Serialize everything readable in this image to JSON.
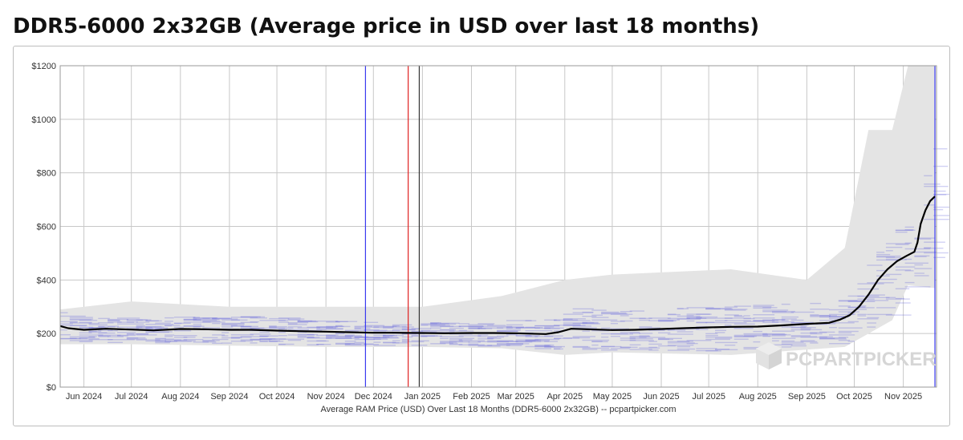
{
  "page": {
    "title": "DDR5-6000 2x32GB (Average price in USD over last 18 months)"
  },
  "colors": {
    "average_line": "#000000",
    "price_band": "#e4e4e4",
    "listing_bars": "#7070dd",
    "marker_blue": "#3a3af0",
    "marker_red": "#e02020",
    "marker_black": "#333333",
    "grid": "#c8c8c8"
  },
  "chart_data": {
    "type": "line",
    "title": "DDR5-6000 2x32GB (Average price in USD over last 18 months)",
    "xlabel": "Average RAM Price (USD) Over Last 18 Months (DDR5-6000 2x32GB) -- pcpartpicker.com",
    "ylabel": "",
    "ylim": [
      0,
      1200
    ],
    "xlim": [
      "2024-05-17",
      "2025-11-22"
    ],
    "grid": true,
    "y_ticks": [
      {
        "value": 0,
        "label": "$0"
      },
      {
        "value": 200,
        "label": "$200"
      },
      {
        "value": 400,
        "label": "$400"
      },
      {
        "value": 600,
        "label": "$600"
      },
      {
        "value": 800,
        "label": "$800"
      },
      {
        "value": 1000,
        "label": "$1000"
      },
      {
        "value": 1200,
        "label": "$1200"
      }
    ],
    "x_ticks": [
      {
        "date": "2024-06-01",
        "label": "Jun 2024"
      },
      {
        "date": "2024-07-01",
        "label": "Jul 2024"
      },
      {
        "date": "2024-08-01",
        "label": "Aug 2024"
      },
      {
        "date": "2024-09-01",
        "label": "Sep 2024"
      },
      {
        "date": "2024-10-01",
        "label": "Oct 2024"
      },
      {
        "date": "2024-11-01",
        "label": "Nov 2024"
      },
      {
        "date": "2024-12-01",
        "label": "Dec 2024"
      },
      {
        "date": "2025-01-01",
        "label": "Jan 2025"
      },
      {
        "date": "2025-02-01",
        "label": "Feb 2025"
      },
      {
        "date": "2025-03-01",
        "label": "Mar 2025"
      },
      {
        "date": "2025-04-01",
        "label": "Apr 2025"
      },
      {
        "date": "2025-05-01",
        "label": "May 2025"
      },
      {
        "date": "2025-06-01",
        "label": "Jun 2025"
      },
      {
        "date": "2025-07-01",
        "label": "Jul 2025"
      },
      {
        "date": "2025-08-01",
        "label": "Aug 2025"
      },
      {
        "date": "2025-09-01",
        "label": "Sep 2025"
      },
      {
        "date": "2025-10-01",
        "label": "Oct 2025"
      },
      {
        "date": "2025-11-01",
        "label": "Nov 2025"
      }
    ],
    "vertical_markers": [
      {
        "date": "2024-11-26",
        "color": "#3a3af0"
      },
      {
        "date": "2024-12-23",
        "color": "#e02020"
      },
      {
        "date": "2024-12-30",
        "color": "#333333"
      },
      {
        "date": "2025-11-21",
        "color": "#3a3af0"
      }
    ],
    "series": [
      {
        "style": "line",
        "points": [
          {
            "x": "2024-05-17",
            "y": 228
          },
          {
            "x": "2024-05-22",
            "y": 220
          },
          {
            "x": "2024-06-01",
            "y": 214
          },
          {
            "x": "2024-06-15",
            "y": 218
          },
          {
            "x": "2024-07-01",
            "y": 215
          },
          {
            "x": "2024-07-15",
            "y": 212
          },
          {
            "x": "2024-08-01",
            "y": 217
          },
          {
            "x": "2024-08-15",
            "y": 216
          },
          {
            "x": "2024-09-01",
            "y": 214
          },
          {
            "x": "2024-09-15",
            "y": 214
          },
          {
            "x": "2024-10-01",
            "y": 211
          },
          {
            "x": "2024-10-15",
            "y": 209
          },
          {
            "x": "2024-11-01",
            "y": 207
          },
          {
            "x": "2024-11-15",
            "y": 205
          },
          {
            "x": "2024-12-01",
            "y": 203
          },
          {
            "x": "2024-12-15",
            "y": 203
          },
          {
            "x": "2025-01-01",
            "y": 202
          },
          {
            "x": "2025-01-15",
            "y": 201
          },
          {
            "x": "2025-02-01",
            "y": 202
          },
          {
            "x": "2025-02-15",
            "y": 202
          },
          {
            "x": "2025-03-01",
            "y": 201
          },
          {
            "x": "2025-03-20",
            "y": 198
          },
          {
            "x": "2025-03-28",
            "y": 205
          },
          {
            "x": "2025-04-05",
            "y": 218
          },
          {
            "x": "2025-04-15",
            "y": 216
          },
          {
            "x": "2025-05-01",
            "y": 213
          },
          {
            "x": "2025-05-15",
            "y": 214
          },
          {
            "x": "2025-06-01",
            "y": 217
          },
          {
            "x": "2025-06-15",
            "y": 220
          },
          {
            "x": "2025-07-01",
            "y": 223
          },
          {
            "x": "2025-07-15",
            "y": 225
          },
          {
            "x": "2025-08-01",
            "y": 226
          },
          {
            "x": "2025-08-15",
            "y": 230
          },
          {
            "x": "2025-09-01",
            "y": 236
          },
          {
            "x": "2025-09-15",
            "y": 240
          },
          {
            "x": "2025-09-22",
            "y": 252
          },
          {
            "x": "2025-09-28",
            "y": 268
          },
          {
            "x": "2025-10-04",
            "y": 300
          },
          {
            "x": "2025-10-10",
            "y": 345
          },
          {
            "x": "2025-10-16",
            "y": 400
          },
          {
            "x": "2025-10-22",
            "y": 440
          },
          {
            "x": "2025-10-28",
            "y": 470
          },
          {
            "x": "2025-11-03",
            "y": 490
          },
          {
            "x": "2025-11-08",
            "y": 505
          },
          {
            "x": "2025-11-10",
            "y": 540
          },
          {
            "x": "2025-11-12",
            "y": 610
          },
          {
            "x": "2025-11-15",
            "y": 660
          },
          {
            "x": "2025-11-18",
            "y": 695
          },
          {
            "x": "2025-11-21",
            "y": 712
          }
        ]
      },
      {
        "style": "range-band",
        "points": [
          {
            "x": "2024-05-17",
            "low": 160,
            "high": 290
          },
          {
            "x": "2024-07-01",
            "low": 160,
            "high": 320
          },
          {
            "x": "2024-09-01",
            "low": 155,
            "high": 300
          },
          {
            "x": "2024-11-01",
            "low": 150,
            "high": 300
          },
          {
            "x": "2025-01-01",
            "low": 150,
            "high": 300
          },
          {
            "x": "2025-02-20",
            "low": 145,
            "high": 340
          },
          {
            "x": "2025-04-01",
            "low": 120,
            "high": 400
          },
          {
            "x": "2025-05-01",
            "low": 130,
            "high": 420
          },
          {
            "x": "2025-07-15",
            "low": 120,
            "high": 440
          },
          {
            "x": "2025-09-01",
            "low": 140,
            "high": 400
          },
          {
            "x": "2025-09-25",
            "low": 150,
            "high": 520
          },
          {
            "x": "2025-10-10",
            "low": 200,
            "high": 960
          },
          {
            "x": "2025-10-25",
            "low": 250,
            "high": 960
          },
          {
            "x": "2025-11-04",
            "low": 380,
            "high": 1200
          },
          {
            "x": "2025-11-21",
            "low": 370,
            "high": 1200
          }
        ]
      }
    ]
  }
}
